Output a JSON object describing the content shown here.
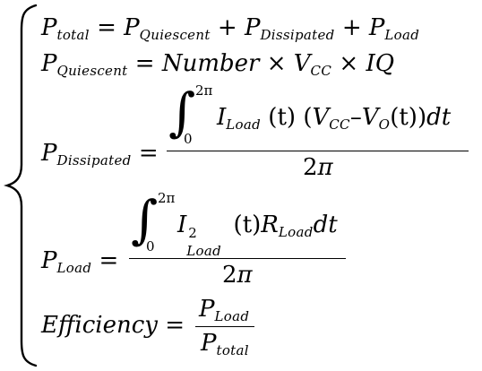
{
  "symbols": {
    "P": "P",
    "total": "total",
    "quiescent": "Quiescent",
    "dissipated": "Dissipated",
    "load": "Load",
    "eq": "=",
    "plus": "+",
    "times": "×",
    "minus": "–",
    "number": "Number",
    "V": "V",
    "CC": "CC",
    "O": "O",
    "IQ": "IQ",
    "I": "I",
    "R": "R",
    "t_paren": "(t)",
    "dt": "dt",
    "two": "2",
    "pi": "π",
    "zero": "0",
    "two_pi": "2π",
    "integral": "∫",
    "efficiency": "Efficiency"
  }
}
